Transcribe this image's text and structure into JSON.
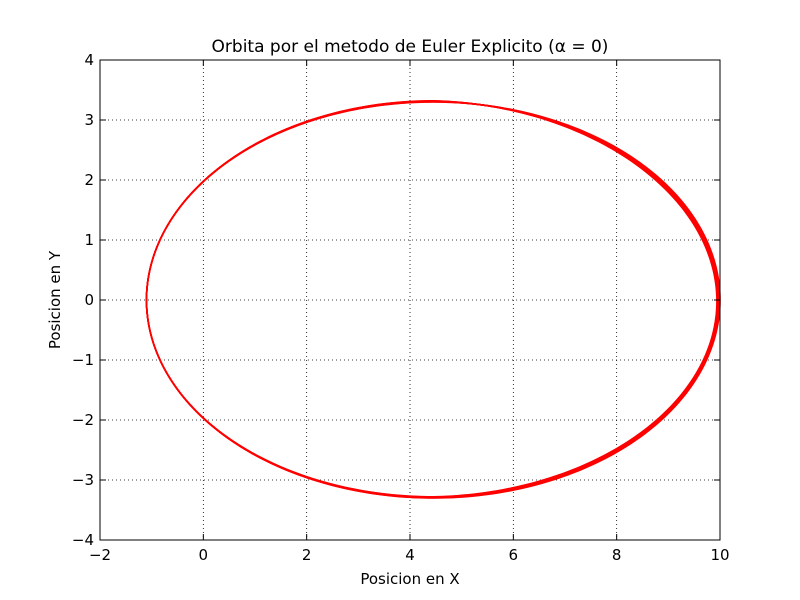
{
  "chart_data": {
    "type": "line",
    "title": "Orbita por el metodo de Euler Explicito (α = 0)",
    "xlabel": "Posicion en X",
    "ylabel": "Posicion en Y",
    "xlim": [
      -2,
      10
    ],
    "ylim": [
      -4,
      4
    ],
    "xticks": [
      -2,
      0,
      2,
      4,
      6,
      8,
      10
    ],
    "yticks": [
      -4,
      -3,
      -2,
      -1,
      0,
      1,
      2,
      3,
      4
    ],
    "xtick_labels": [
      "−2",
      "0",
      "2",
      "4",
      "6",
      "8",
      "10"
    ],
    "ytick_labels": [
      "−4",
      "−3",
      "−2",
      "−1",
      "0",
      "1",
      "2",
      "3",
      "4"
    ],
    "grid": true,
    "series": [
      {
        "color": "#ff0000",
        "orbit": {
          "center_x": 4.45,
          "center_y": 0.0,
          "semi_major_axis": 5.55,
          "semi_minor_axis": 3.3,
          "x_min": -1.1,
          "x_max": 10.0,
          "y_max": 3.27,
          "y_min": -3.33
        }
      }
    ]
  }
}
